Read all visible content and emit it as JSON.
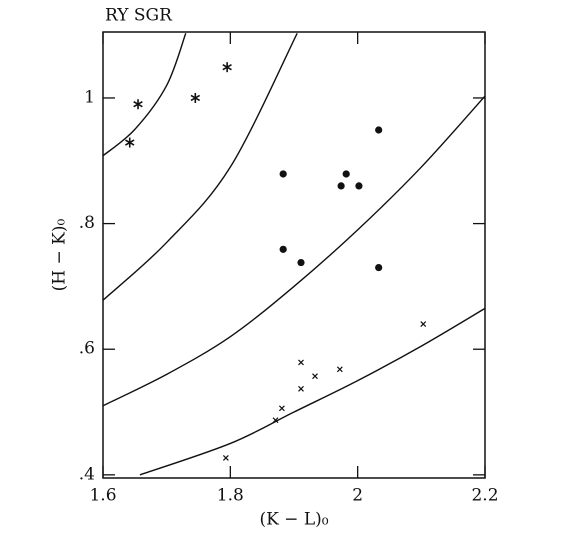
{
  "chart_data": {
    "type": "scatter",
    "title": "RY SGR",
    "xlabel": "(K − L)₀",
    "ylabel": "(H − K)₀",
    "xlim": [
      1.6,
      2.2
    ],
    "ylim": [
      0.395,
      1.105
    ],
    "xticks": [
      1.6,
      1.8,
      2,
      2.2
    ],
    "yticks": [
      {
        "value": 0.4,
        "label": ".4"
      },
      {
        "value": 0.6,
        "label": ".6"
      },
      {
        "value": 0.8,
        "label": ".8"
      },
      {
        "value": 1.0,
        "label": "1"
      }
    ],
    "series": [
      {
        "marker": "asterisk",
        "color": "#111111",
        "x": [
          1.642,
          1.655,
          1.745,
          1.795
        ],
        "values": [
          0.929,
          0.99,
          1.0,
          1.049
        ]
      },
      {
        "marker": "dot",
        "color": "#111111",
        "x": [
          1.883,
          1.982,
          1.974,
          2.002,
          2.033,
          1.883,
          1.911,
          2.033
        ],
        "values": [
          0.879,
          0.879,
          0.86,
          0.86,
          0.949,
          0.759,
          0.738,
          0.73
        ]
      },
      {
        "marker": "cross",
        "color": "#111111",
        "x": [
          1.911,
          1.911,
          1.933,
          1.972,
          1.881,
          1.871,
          1.793,
          2.103
        ],
        "values": [
          0.579,
          0.537,
          0.557,
          0.568,
          0.506,
          0.487,
          0.427,
          0.64
        ]
      },
      {
        "marker": "line",
        "color": "#111111",
        "x": [
          1.6,
          1.65,
          1.7,
          1.73
        ],
        "values": [
          0.908,
          0.95,
          1.02,
          1.103
        ]
      },
      {
        "marker": "line",
        "color": "#111111",
        "x": [
          1.6,
          1.7,
          1.8,
          1.905
        ],
        "values": [
          0.678,
          0.77,
          0.89,
          1.103
        ]
      },
      {
        "marker": "line",
        "color": "#111111",
        "x": [
          1.6,
          1.7,
          1.8,
          1.9,
          2.0,
          2.1,
          2.2
        ],
        "values": [
          0.51,
          0.56,
          0.62,
          0.7,
          0.79,
          0.89,
          1.003
        ]
      },
      {
        "marker": "line",
        "color": "#111111",
        "x": [
          1.658,
          1.8,
          1.9,
          2.0,
          2.1,
          2.2
        ],
        "values": [
          0.4,
          0.45,
          0.5,
          0.55,
          0.605,
          0.665
        ]
      }
    ]
  }
}
